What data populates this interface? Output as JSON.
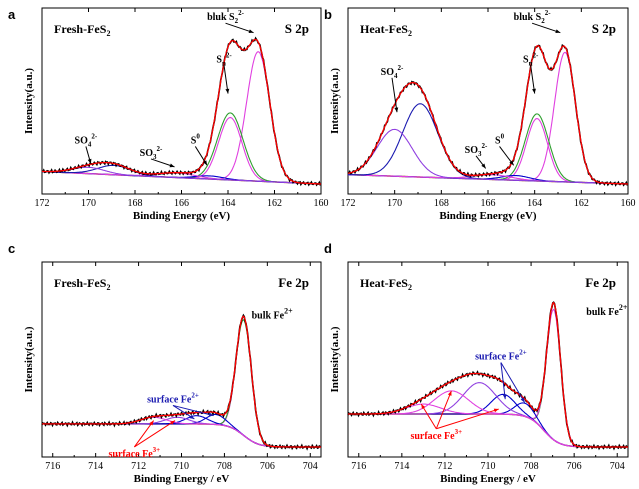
{
  "chart_data": [
    {
      "panel": "a",
      "type": "line",
      "sample_label": "Fresh-FeS",
      "sample_sub": "2",
      "region_label": "S 2p",
      "xlabel": "Binding Energy (eV)",
      "ylabel": "Intensity(a.u.)",
      "xlim": [
        172,
        160
      ],
      "xticks": [
        172,
        170,
        168,
        166,
        164,
        162,
        160
      ],
      "xticks_reversed": true,
      "ymax": 1.0,
      "y_ticks_shown": false,
      "background": {
        "type": "linear",
        "color": "#8B1A1A",
        "at_left": 0.08,
        "at_right": 0.0
      },
      "components": [
        {
          "label": "bulk S2^2- 2p3/2",
          "center": 162.7,
          "height": 0.83,
          "width": 0.5,
          "color": "#E040E0"
        },
        {
          "label": "bulk S2^2- 2p1/2",
          "center": 163.9,
          "height": 0.4,
          "width": 0.5,
          "color": "#E040E0"
        },
        {
          "label": "Sn^2-",
          "center": 163.9,
          "height": 0.43,
          "width": 0.55,
          "color": "#2E9E2E"
        },
        {
          "label": "S0",
          "center": 164.8,
          "height": 0.02,
          "width": 0.6,
          "color": "#0000CC"
        },
        {
          "label": "SO3^2-",
          "center": 166.2,
          "height": 0.03,
          "width": 0.8,
          "color": "#E040E0"
        },
        {
          "label": "SO4^2-",
          "center": 168.9,
          "height": 0.06,
          "width": 0.7,
          "color": "#1A1AB0"
        },
        {
          "label": "SO4^2- (2)",
          "center": 170.0,
          "height": 0.04,
          "width": 0.7,
          "color": "#9040E0"
        }
      ],
      "envelope_color": "#FF0000",
      "raw_color": "#000000",
      "annotations": [
        {
          "base": "SO",
          "sub": "4",
          "sup": "2-",
          "x": 170.6,
          "y": 0.26,
          "arrow_to": [
            169.9,
            0.13
          ]
        },
        {
          "base": "SO",
          "sub": "3",
          "sup": "2-",
          "x": 167.8,
          "y": 0.18,
          "arrow_to": [
            166.3,
            0.11
          ]
        },
        {
          "base": "S",
          "sub": "",
          "sup": "0",
          "x": 165.6,
          "y": 0.26,
          "arrow_to": [
            164.9,
            0.12
          ]
        },
        {
          "base": "S",
          "sub": "n",
          "sup": "2-",
          "x": 164.5,
          "y": 0.78,
          "arrow_to": [
            164.0,
            0.58
          ]
        },
        {
          "base": "bluk S",
          "sub": "2",
          "sup": "2-",
          "x": 164.9,
          "y": 1.05,
          "arrow_to": [
            162.9,
            0.97
          ]
        }
      ]
    },
    {
      "panel": "b",
      "type": "line",
      "sample_label": "Heat-FeS",
      "sample_sub": "2",
      "region_label": "S 2p",
      "xlabel": "Binding Energy (eV)",
      "ylabel": "Intensity(a.u.)",
      "xlim": [
        172,
        160
      ],
      "xticks": [
        172,
        170,
        168,
        166,
        164,
        162,
        160
      ],
      "xticks_reversed": true,
      "ymax": 1.0,
      "y_ticks_shown": false,
      "background": {
        "type": "linear",
        "color": "#8B1A1A",
        "at_left": 0.06,
        "at_right": 0.0
      },
      "components": [
        {
          "label": "bulk S2^2- 2p3/2",
          "center": 162.7,
          "height": 0.83,
          "width": 0.45,
          "color": "#E040E0"
        },
        {
          "label": "bulk S2^2- 2p1/2",
          "center": 163.9,
          "height": 0.4,
          "width": 0.45,
          "color": "#E040E0"
        },
        {
          "label": "Sn^2-",
          "center": 163.9,
          "height": 0.43,
          "width": 0.5,
          "color": "#2E9E2E"
        },
        {
          "label": "S0",
          "center": 164.8,
          "height": 0.03,
          "width": 0.6,
          "color": "#0000CC"
        },
        {
          "label": "SO3^2-",
          "center": 165.8,
          "height": 0.03,
          "width": 0.8,
          "color": "#E040E0"
        },
        {
          "label": "SO4^2-",
          "center": 168.9,
          "height": 0.47,
          "width": 0.75,
          "color": "#1A1AB0"
        },
        {
          "label": "SO4^2- (2)",
          "center": 170.0,
          "height": 0.3,
          "width": 0.75,
          "color": "#9040E0"
        }
      ],
      "envelope_color": "#FF0000",
      "raw_color": "#000000",
      "annotations": [
        {
          "base": "SO",
          "sub": "4",
          "sup": "2-",
          "x": 170.6,
          "y": 0.7,
          "arrow_to": [
            169.9,
            0.46
          ]
        },
        {
          "base": "SO",
          "sub": "3",
          "sup": "2-",
          "x": 167.0,
          "y": 0.2,
          "arrow_to": [
            166.1,
            0.1
          ]
        },
        {
          "base": "S",
          "sub": "",
          "sup": "0",
          "x": 165.7,
          "y": 0.26,
          "arrow_to": [
            164.9,
            0.12
          ]
        },
        {
          "base": "S",
          "sub": "n",
          "sup": "2-",
          "x": 164.5,
          "y": 0.78,
          "arrow_to": [
            164.0,
            0.58
          ]
        },
        {
          "base": "bluk S",
          "sub": "2",
          "sup": "2-",
          "x": 164.9,
          "y": 1.05,
          "arrow_to": [
            162.9,
            0.97
          ]
        }
      ]
    },
    {
      "panel": "c",
      "type": "line",
      "sample_label": "Fresh-FeS",
      "sample_sub": "2",
      "region_label": "Fe 2p",
      "xlabel": "Binding Energy / eV",
      "ylabel": "Intensity(a.u.)",
      "xlim": [
        716.5,
        703.5
      ],
      "xticks": [
        716,
        714,
        712,
        710,
        708,
        706,
        704
      ],
      "xticks_reversed": true,
      "ymax": 1.0,
      "y_ticks_shown": false,
      "background": {
        "type": "step",
        "color": "#8B1A1A",
        "high": 0.14,
        "low": 0.0,
        "step_center": 707.1
      },
      "components": [
        {
          "label": "bulk Fe2+",
          "center": 707.1,
          "height": 0.72,
          "width": 0.35,
          "color": "#E040E0"
        },
        {
          "label": "bulk Fe2+ green",
          "center": 707.1,
          "height": 0.7,
          "width": 0.36,
          "color": "#2E9E2E"
        },
        {
          "label": "surface Fe2+ a",
          "center": 708.4,
          "height": 0.06,
          "width": 0.45,
          "color": "#0000CC"
        },
        {
          "label": "surface Fe2+ b",
          "center": 709.3,
          "height": 0.05,
          "width": 0.5,
          "color": "#0000CC"
        },
        {
          "label": "surface Fe3+ a",
          "center": 710.2,
          "height": 0.04,
          "width": 0.55,
          "color": "#9040E0"
        },
        {
          "label": "surface Fe3+ b",
          "center": 711.3,
          "height": 0.04,
          "width": 0.6,
          "color": "#E040E0"
        }
      ],
      "envelope_color": "#FF0000",
      "raw_color": "#000000",
      "annotations": [
        {
          "base": "surface Fe",
          "sub": "",
          "sup": "2+",
          "x": 711.6,
          "y": 0.27,
          "arrow_to": [
            708.5,
            0.19
          ],
          "arrow2_to": [
            709.4,
            0.17
          ],
          "color": "#1A1AB0"
        },
        {
          "base": "surface Fe",
          "sub": "",
          "sup": "3+",
          "x": 713.4,
          "y": -0.06,
          "arrow_to": [
            711.3,
            0.16
          ],
          "arrow2_to": [
            710.3,
            0.16
          ],
          "color": "#FF0000"
        }
      ],
      "side_label": {
        "base": "bulk Fe",
        "sup": "2+",
        "x": 707.2,
        "y": 0.78
      }
    },
    {
      "panel": "d",
      "type": "line",
      "sample_label": "Heat-FeS",
      "sample_sub": "2",
      "region_label": "Fe 2p",
      "xlabel": "Binding Energy / eV",
      "ylabel": "Intensity(a.u.)",
      "xlim": [
        716.5,
        703.5
      ],
      "xticks": [
        716,
        714,
        712,
        710,
        708,
        706,
        704
      ],
      "xticks_reversed": true,
      "ymax": 1.0,
      "y_ticks_shown": false,
      "background": {
        "type": "step",
        "color": "#8B1A1A",
        "high": 0.2,
        "low": 0.0,
        "step_center": 707.4
      },
      "components": [
        {
          "label": "bulk Fe2+",
          "center": 706.95,
          "height": 0.83,
          "width": 0.32,
          "color": "#2E9E2E"
        },
        {
          "label": "bulk Fe2+ pink",
          "center": 706.95,
          "height": 0.79,
          "width": 0.33,
          "color": "#E040E0"
        },
        {
          "label": "surface Fe2+ a",
          "center": 708.3,
          "height": 0.08,
          "width": 0.45,
          "color": "#0000CC"
        },
        {
          "label": "surface Fe2+ b",
          "center": 709.3,
          "height": 0.12,
          "width": 0.55,
          "color": "#0000CC"
        },
        {
          "label": "surface Fe3+ a",
          "center": 710.4,
          "height": 0.19,
          "width": 0.75,
          "color": "#9040E0"
        },
        {
          "label": "surface Fe3+ b",
          "center": 711.7,
          "height": 0.14,
          "width": 0.8,
          "color": "#E040E0"
        },
        {
          "label": "surface Fe3+ c",
          "center": 713.0,
          "height": 0.06,
          "width": 0.8,
          "color": "#E040E0"
        }
      ],
      "envelope_color": "#FF0000",
      "raw_color": "#000000",
      "annotations": [
        {
          "base": "surface Fe",
          "sub": "",
          "sup": "2+",
          "x": 710.6,
          "y": 0.53,
          "arrow_to": [
            708.3,
            0.27
          ],
          "arrow2_to": [
            709.2,
            0.29
          ],
          "color": "#1A1AB0"
        },
        {
          "base": "surface Fe",
          "sub": "",
          "sup": "3+",
          "x": 713.6,
          "y": 0.05,
          "arrow_to": [
            713.1,
            0.26
          ],
          "arrow2_to": [
            711.7,
            0.34
          ],
          "arrow3_to": [
            709.5,
            0.23
          ],
          "color": "#FF0000"
        }
      ],
      "side_label": {
        "base": "bulk Fe",
        "sup": "2+",
        "x": 705.9,
        "y": 0.8
      }
    }
  ]
}
